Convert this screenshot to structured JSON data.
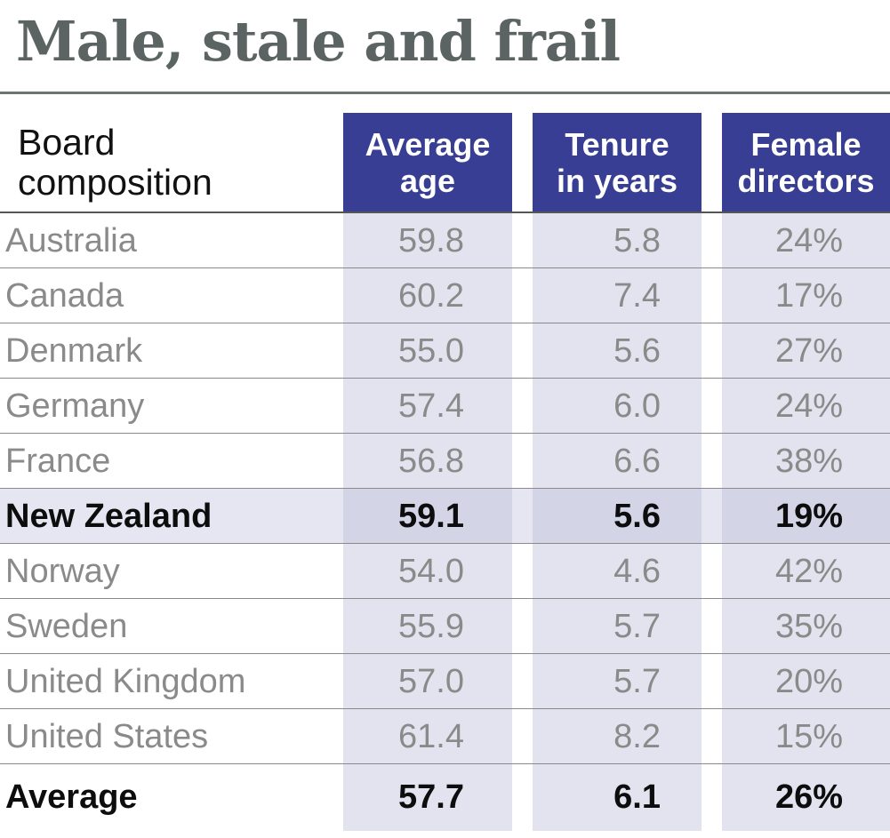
{
  "title": "Male, stale and frail",
  "row_header": "Board\ncomposition",
  "columns": [
    "Average\nage",
    "Tenure\nin years",
    "Female\ndirectors"
  ],
  "colors": {
    "header_fill": "#383e93",
    "column_fill": "#e3e3ef",
    "title_color": "#5b6462"
  },
  "chart_data": {
    "type": "table",
    "title": "Male, stale and frail",
    "columns": [
      "Board composition",
      "Average age",
      "Tenure in years",
      "Female directors"
    ],
    "rows": [
      {
        "country": "Australia",
        "age": "59.8",
        "tenure": "5.8",
        "female": "24%"
      },
      {
        "country": "Canada",
        "age": "60.2",
        "tenure": "7.4",
        "female": "17%"
      },
      {
        "country": "Denmark",
        "age": "55.0",
        "tenure": "5.6",
        "female": "27%"
      },
      {
        "country": "Germany",
        "age": "57.4",
        "tenure": "6.0",
        "female": "24%"
      },
      {
        "country": "France",
        "age": "56.8",
        "tenure": "6.6",
        "female": "38%"
      },
      {
        "country": "New Zealand",
        "age": "59.1",
        "tenure": "5.6",
        "female": "19%",
        "highlight": true
      },
      {
        "country": "Norway",
        "age": "54.0",
        "tenure": "4.6",
        "female": "42%"
      },
      {
        "country": "Sweden",
        "age": "55.9",
        "tenure": "5.7",
        "female": "35%"
      },
      {
        "country": "United Kingdom",
        "age": "57.0",
        "tenure": "5.7",
        "female": "20%"
      },
      {
        "country": "United States",
        "age": "61.4",
        "tenure": "8.2",
        "female": "15%"
      }
    ],
    "average": {
      "country": "Average",
      "age": "57.7",
      "tenure": "6.1",
      "female": "26%"
    }
  }
}
